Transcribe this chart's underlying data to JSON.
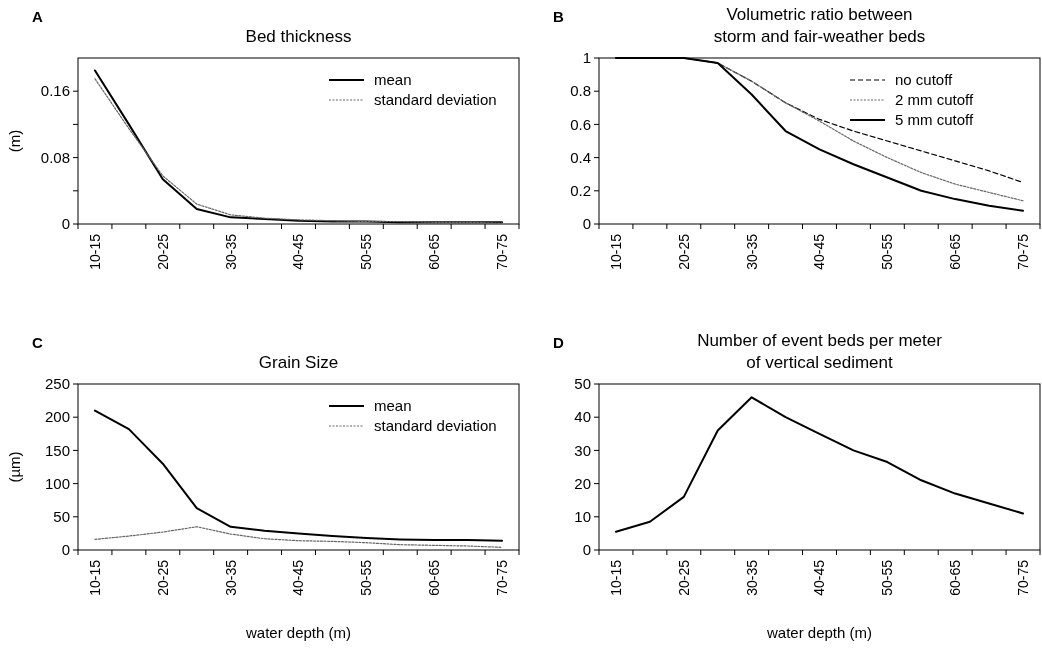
{
  "chart_data": [
    {
      "type": "line",
      "title": "Bed thickness",
      "ylabel": "(m)",
      "annotations": [
        "A"
      ],
      "categories": [
        "10-15",
        null,
        "20-25",
        null,
        "30-35",
        null,
        "40-45",
        null,
        "50-55",
        null,
        "60-65",
        null,
        "70-75"
      ],
      "ylim": [
        0,
        0.2
      ],
      "yticks": [
        0,
        {
          "value": 0.04,
          "label": null
        },
        0.08,
        {
          "value": 0.12,
          "label": null
        },
        0.16
      ],
      "legend": "top right",
      "grid": false,
      "series": [
        {
          "name": "mean",
          "color": "#000000",
          "line_style": "solid",
          "values": [
            0.185,
            0.12,
            0.054,
            0.018,
            0.008,
            0.006,
            0.004,
            0.003,
            0.003,
            0.002,
            0.002,
            0.002,
            0.002
          ]
        },
        {
          "name": "standard deviation",
          "color": "#666666",
          "line_style": "dotted",
          "values": [
            0.175,
            0.115,
            0.058,
            0.024,
            0.011,
            0.007,
            0.005,
            0.004,
            0.003,
            0.003,
            0.002,
            0.002,
            0.001
          ]
        }
      ]
    },
    {
      "type": "line",
      "title": "Volumetric ratio between\nstorm and fair-weather beds",
      "annotations": [
        "B"
      ],
      "categories": [
        "10-15",
        null,
        "20-25",
        null,
        "30-35",
        null,
        "40-45",
        null,
        "50-55",
        null,
        "60-65",
        null,
        "70-75"
      ],
      "ylim": [
        0,
        1
      ],
      "yticks": [
        0,
        0.2,
        0.4,
        0.6,
        0.8,
        1
      ],
      "legend": "top right",
      "grid": false,
      "series": [
        {
          "name": "no cutoff",
          "color": "#000000",
          "line_style": "dashed",
          "values": [
            1,
            1,
            1,
            0.97,
            0.86,
            0.73,
            0.63,
            0.56,
            0.5,
            0.44,
            0.38,
            0.32,
            0.25
          ]
        },
        {
          "name": "2 mm cutoff",
          "color": "#666666",
          "line_style": "dotted",
          "values": [
            1,
            1,
            1,
            0.97,
            0.86,
            0.73,
            0.62,
            0.5,
            0.4,
            0.31,
            0.24,
            0.19,
            0.14
          ]
        },
        {
          "name": "5 mm cutoff",
          "color": "#000000",
          "line_style": "solid",
          "values": [
            1,
            1,
            1,
            0.97,
            0.78,
            0.56,
            0.45,
            0.36,
            0.28,
            0.2,
            0.15,
            0.11,
            0.08
          ]
        }
      ]
    },
    {
      "type": "line",
      "title": "Grain Size",
      "ylabel": "(µm)",
      "xlabel": "water depth (m)",
      "annotations": [
        "C"
      ],
      "categories": [
        "10-15",
        null,
        "20-25",
        null,
        "30-35",
        null,
        "40-45",
        null,
        "50-55",
        null,
        "60-65",
        null,
        "70-75"
      ],
      "ylim": [
        0,
        250
      ],
      "yticks": [
        0,
        50,
        100,
        150,
        200,
        250
      ],
      "legend": "top right",
      "grid": false,
      "series": [
        {
          "name": "mean",
          "color": "#000000",
          "line_style": "solid",
          "values": [
            210,
            182,
            130,
            63,
            35,
            29,
            25,
            21,
            18,
            16,
            15,
            15,
            14
          ]
        },
        {
          "name": "standard deviation",
          "color": "#666666",
          "line_style": "dotted",
          "values": [
            16,
            21,
            27,
            35,
            24,
            17,
            14,
            13,
            11,
            8,
            7,
            6,
            4
          ]
        }
      ]
    },
    {
      "type": "line",
      "title": "Number of event beds per meter\nof vertical sediment",
      "xlabel": "water depth (m)",
      "annotations": [
        "D"
      ],
      "categories": [
        "10-15",
        null,
        "20-25",
        null,
        "30-35",
        null,
        "40-45",
        null,
        "50-55",
        null,
        "60-65",
        null,
        "70-75"
      ],
      "ylim": [
        0,
        50
      ],
      "yticks": [
        0,
        10,
        20,
        30,
        40,
        50
      ],
      "grid": false,
      "series": [
        {
          "color": "#000000",
          "line_style": "solid",
          "values": [
            5.5,
            8.5,
            16,
            36,
            46,
            40,
            35,
            30,
            26.5,
            21,
            17,
            14,
            11
          ]
        }
      ]
    }
  ]
}
